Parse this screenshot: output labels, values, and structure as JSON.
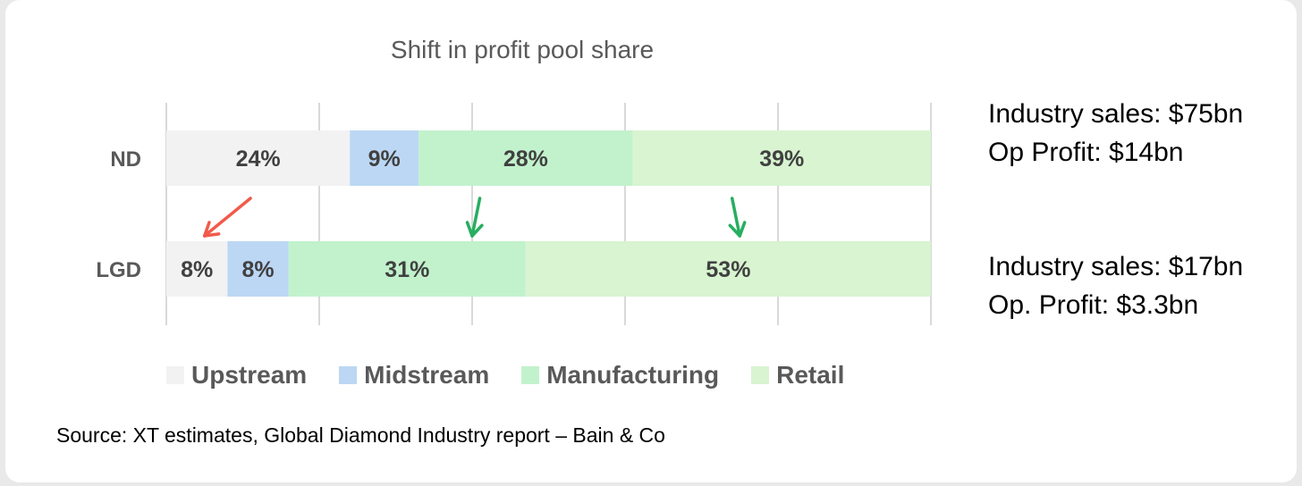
{
  "chart_data": {
    "type": "bar",
    "orientation": "horizontal",
    "stacked": true,
    "normalized": true,
    "title": "Shift in profit pool share",
    "categories": [
      "ND",
      "LGD"
    ],
    "series": [
      {
        "name": "Upstream",
        "color": "#f2f2f2",
        "values": [
          24,
          8
        ],
        "labels": [
          "24%",
          "8%"
        ]
      },
      {
        "name": "Midstream",
        "color": "#bcd7f4",
        "values": [
          9,
          8
        ],
        "labels": [
          "9%",
          "8%"
        ]
      },
      {
        "name": "Manufacturing",
        "color": "#c2f2cc",
        "values": [
          28,
          31
        ],
        "labels": [
          "28%",
          "31%"
        ]
      },
      {
        "name": "Retail",
        "color": "#d8f4d0",
        "values": [
          39,
          53
        ],
        "labels": [
          "39%",
          "53%"
        ]
      }
    ],
    "xlim": [
      0,
      100
    ],
    "grid": true,
    "legend_position": "bottom",
    "annotations": [
      {
        "type": "arrow",
        "color": "#f15a4a",
        "from": {
          "bar": "ND",
          "at": 11
        },
        "to": {
          "bar": "LGD",
          "at": 5
        }
      },
      {
        "type": "arrow",
        "color": "#27ae60",
        "from": {
          "bar": "ND",
          "at": 41
        },
        "to": {
          "bar": "LGD",
          "at": 40
        }
      },
      {
        "type": "arrow",
        "color": "#27ae60",
        "from": {
          "bar": "ND",
          "at": 74
        },
        "to": {
          "bar": "LGD",
          "at": 75
        }
      }
    ]
  },
  "notes": [
    {
      "lines": [
        "Industry sales: $75bn",
        "Op Profit: $14bn"
      ]
    },
    {
      "lines": [
        "Industry sales: $17bn",
        "Op. Profit: $3.3bn"
      ]
    }
  ],
  "source": "Source: XT estimates, Global Diamond Industry report – Bain & Co",
  "colors": {
    "gridline": "#d9d9d9",
    "label_text": "#404040",
    "category_text": "#595959"
  }
}
